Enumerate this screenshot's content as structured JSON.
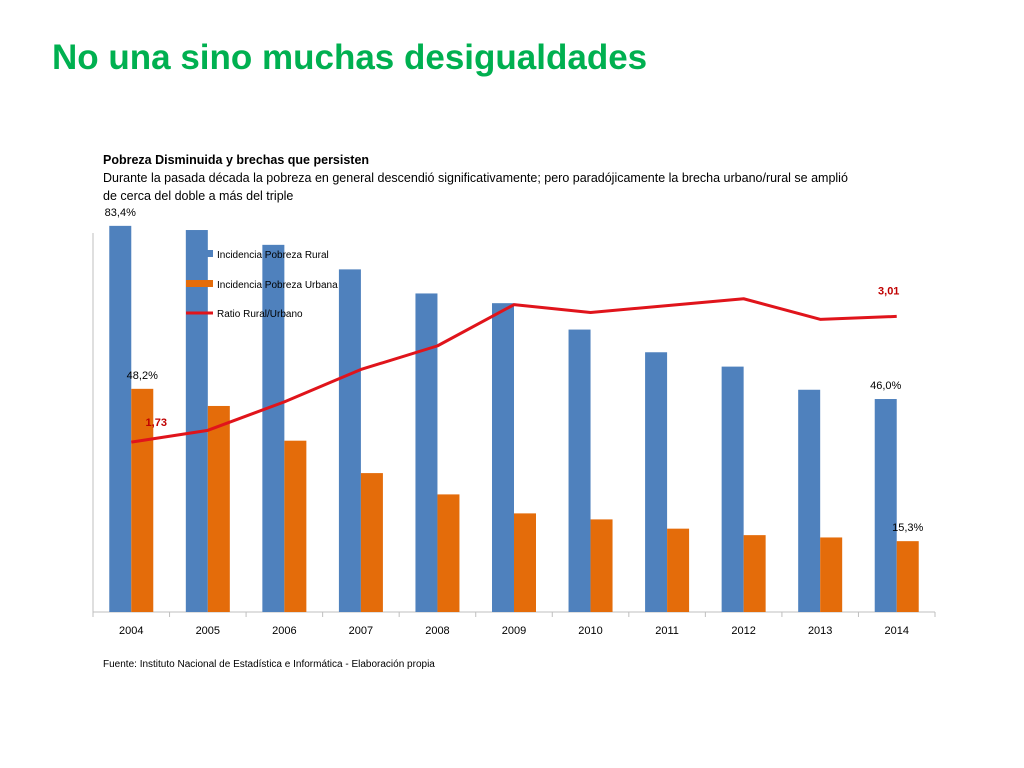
{
  "slide": {
    "title": "No una sino muchas desigualdades",
    "heading": "Pobreza Disminuida y brechas que persisten",
    "description": "Durante la pasada década la pobreza en general descendió  significativamente; pero paradójicamente la brecha urbano/rural se amplió de cerca del doble a más del triple",
    "source": "Fuente: Instituto Nacional de Estadística e Informática - Elaboración propia"
  },
  "colors": {
    "title": "#00B050",
    "rural": "#4F81BD",
    "urban": "#E46C0A",
    "ratio": "#E0141B",
    "ratio_label": "#C00000"
  },
  "chart_data": {
    "type": "bar",
    "title": "",
    "xlabel": "",
    "ylabel": "",
    "categories": [
      "2004",
      "2005",
      "2006",
      "2007",
      "2008",
      "2009",
      "2010",
      "2011",
      "2012",
      "2013",
      "2014"
    ],
    "ylim": [
      0,
      100
    ],
    "y2lim": [
      0,
      4.2
    ],
    "legend_position": "top-left",
    "grid": false,
    "series": [
      {
        "name": "Incidencia Pobreza Rural",
        "type": "bar",
        "axis": "left",
        "values": [
          83.4,
          82.5,
          79.3,
          74.0,
          68.8,
          66.7,
          61.0,
          56.1,
          53.0,
          48.0,
          46.0
        ],
        "labels": {
          "0": "83,4%",
          "10": "46,0%"
        }
      },
      {
        "name": "Incidencia Pobreza Urbana",
        "type": "bar",
        "axis": "left",
        "values": [
          48.2,
          44.5,
          37.0,
          30.0,
          25.4,
          21.3,
          20.0,
          18.0,
          16.6,
          16.1,
          15.3
        ],
        "labels": {
          "0": "48,2%",
          "10": "15,3%"
        }
      },
      {
        "name": "Ratio Rural/Urbano",
        "type": "line",
        "axis": "right",
        "values": [
          1.73,
          1.85,
          2.14,
          2.47,
          2.71,
          3.13,
          3.05,
          3.12,
          3.19,
          2.98,
          3.01
        ],
        "labels": {
          "0": "1,73",
          "10": "3,01"
        }
      }
    ]
  }
}
